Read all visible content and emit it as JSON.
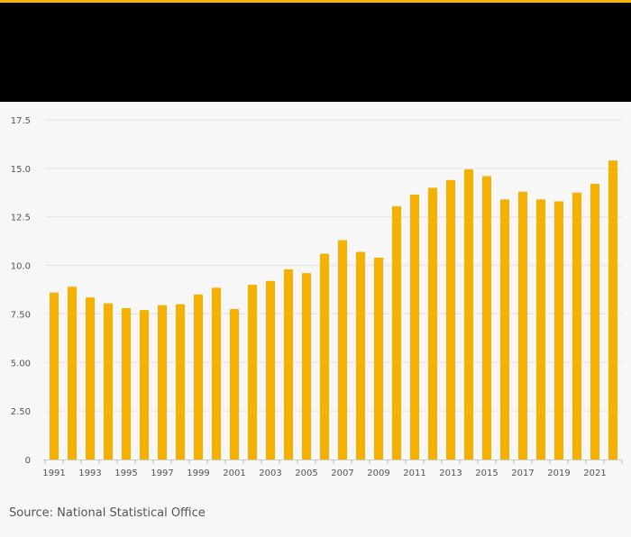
{
  "colors": {
    "accent": "#f5b400",
    "bar": "#f5b000",
    "header": "#000000",
    "background": "#f7f7f7"
  },
  "source": "Source: National Statistical Office",
  "chart_data": {
    "type": "bar",
    "title": "",
    "xlabel": "",
    "ylabel": "",
    "ylim": [
      0,
      17.5
    ],
    "y_ticks": [
      {
        "value": 0,
        "label": "0"
      },
      {
        "value": 2.5,
        "label": "2.50"
      },
      {
        "value": 5,
        "label": "5.00"
      },
      {
        "value": 7.5,
        "label": "7.50"
      },
      {
        "value": 10,
        "label": "10.0"
      },
      {
        "value": 12.5,
        "label": "12.5"
      },
      {
        "value": 15,
        "label": "15.0"
      },
      {
        "value": 17.5,
        "label": "17.5"
      }
    ],
    "categories": [
      "1991",
      "1992",
      "1993",
      "1994",
      "1995",
      "1996",
      "1997",
      "1998",
      "1999",
      "2000",
      "2001",
      "2002",
      "2003",
      "2004",
      "2005",
      "2006",
      "2007",
      "2008",
      "2009",
      "2010",
      "2011",
      "2012",
      "2013",
      "2014",
      "2015",
      "2016",
      "2017",
      "2018",
      "2019",
      "2020",
      "2021",
      "2022"
    ],
    "x_tick_labels": [
      "1991",
      "",
      "1993",
      "",
      "1995",
      "",
      "1997",
      "",
      "1999",
      "",
      "2001",
      "",
      "2003",
      "",
      "2005",
      "",
      "2007",
      "",
      "2009",
      "",
      "2011",
      "",
      "2013",
      "",
      "2015",
      "",
      "2017",
      "",
      "2019",
      "",
      "2021",
      ""
    ],
    "values": [
      8.6,
      8.9,
      8.35,
      8.05,
      7.8,
      7.7,
      7.95,
      8.0,
      8.5,
      8.85,
      7.75,
      9.0,
      9.2,
      9.8,
      9.6,
      10.6,
      11.3,
      10.7,
      10.4,
      13.05,
      13.65,
      14.0,
      14.4,
      14.95,
      14.6,
      13.4,
      13.8,
      13.4,
      13.3,
      13.75,
      14.2,
      15.4
    ],
    "grid": true
  }
}
